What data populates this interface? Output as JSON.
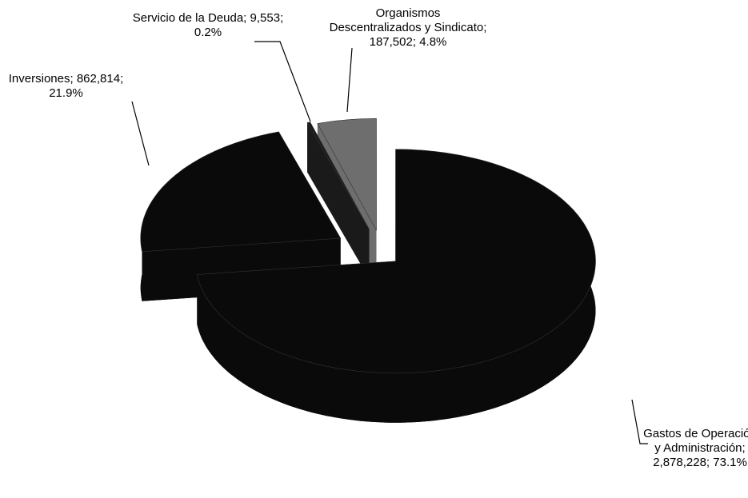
{
  "chart_data": {
    "type": "pie3d",
    "categories": [
      "Gastos de Operación y Administración",
      "Inversiones",
      "Servicio de la Deuda",
      "Organismos Descentralizados y Sindicato"
    ],
    "values": [
      2878228,
      862814,
      9553,
      187502
    ],
    "value_labels": [
      "2,878,228",
      "862,814",
      "9,553",
      "187,502"
    ],
    "percent_labels": [
      "73.1%",
      "21.9%",
      "0.2%",
      "4.8%"
    ],
    "label_separator": "; ",
    "colors": [
      "#0a0a0a",
      "#0a0a0a",
      "#1a1a1a",
      "#6e6e6e"
    ]
  }
}
